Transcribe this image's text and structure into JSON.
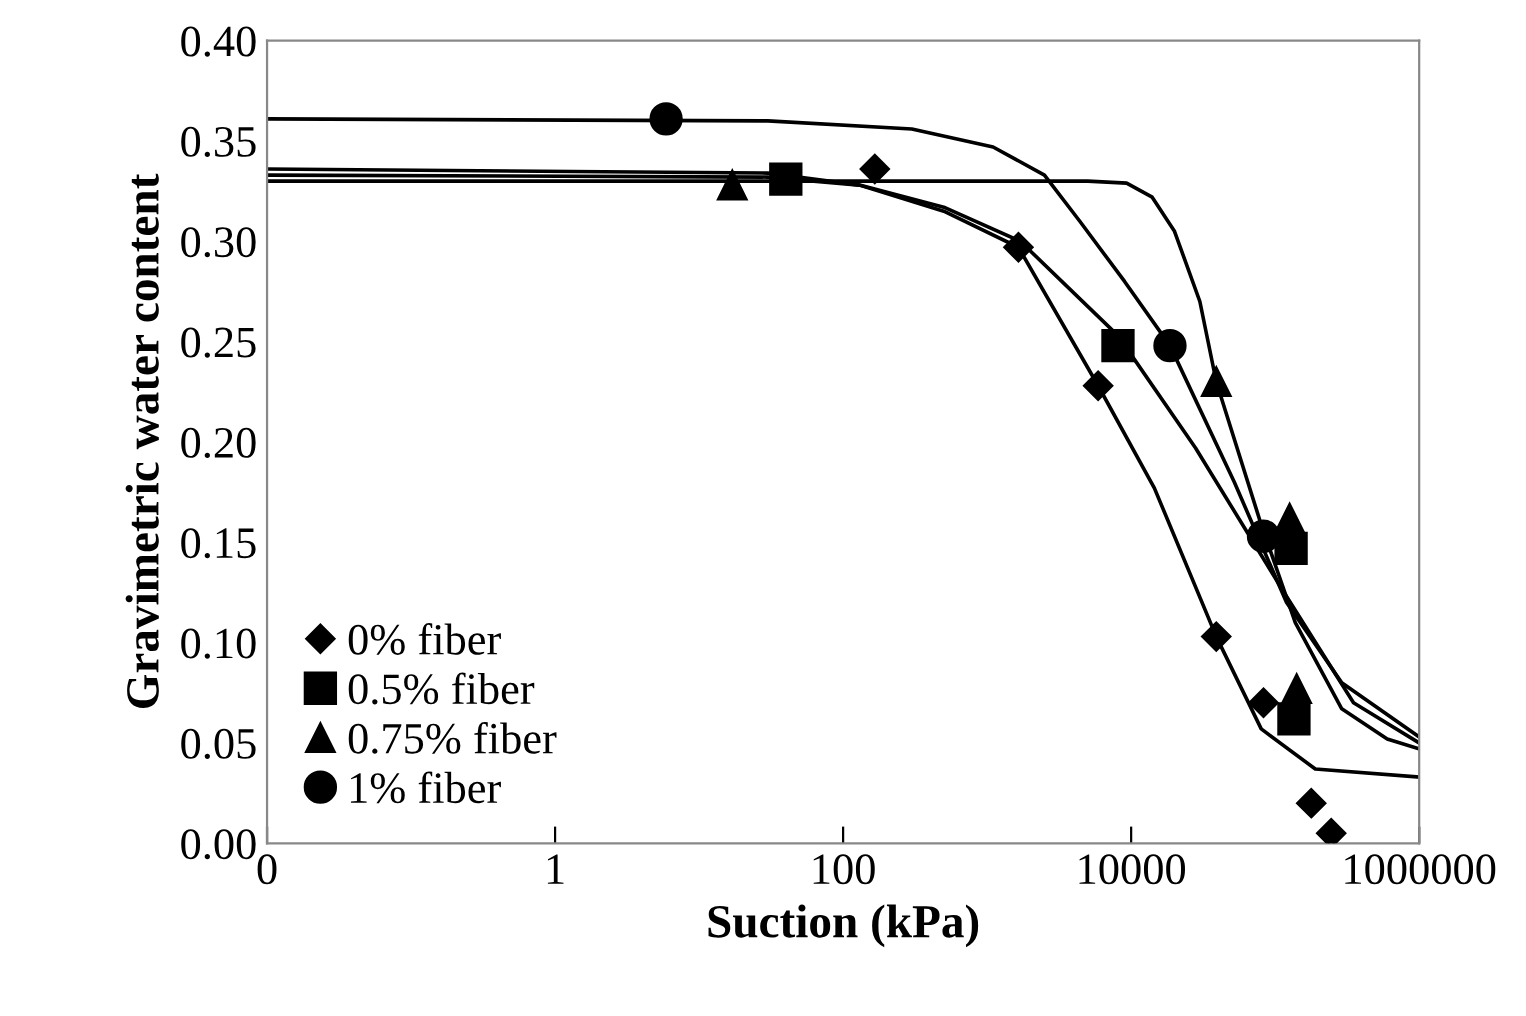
{
  "chart_data": {
    "type": "scatter",
    "xlabel": "Suction (kPa)",
    "ylabel": "Gravimetric water content",
    "log": "x",
    "xlim": [
      0.01,
      1000000
    ],
    "ylim": [
      0,
      0.4
    ],
    "xticks": [
      {
        "value": 0.01,
        "label": "0"
      },
      1,
      100,
      10000,
      1000000
    ],
    "yticks": [
      {
        "value": 0,
        "label": "0.00"
      },
      {
        "value": 0.05,
        "label": "0.05"
      },
      {
        "value": 0.1,
        "label": "0.10"
      },
      {
        "value": 0.15,
        "label": "0.15"
      },
      {
        "value": 0.2,
        "label": "0.20"
      },
      {
        "value": 0.25,
        "label": "0.25"
      },
      {
        "value": 0.3,
        "label": "0.30"
      },
      {
        "value": 0.35,
        "label": "0.35"
      },
      {
        "value": 0.4,
        "label": "0.40"
      }
    ],
    "grid": false,
    "legend": "bottom left",
    "series": [
      {
        "name": "0% fiber",
        "marker": "diamond",
        "color": "#000000",
        "x": [
          166,
          1650,
          5900,
          39000,
          83000,
          178000,
          245000
        ],
        "values": [
          0.336,
          0.297,
          0.228,
          0.103,
          0.07,
          0.02,
          0.005
        ]
      },
      {
        "name": "0.5% fiber",
        "marker": "square",
        "color": "#000000",
        "x": [
          40,
          8100,
          129000,
          135000
        ],
        "values": [
          0.331,
          0.248,
          0.147,
          0.062
        ]
      },
      {
        "name": "0.75% fiber",
        "marker": "triangle",
        "color": "#000000",
        "x": [
          17,
          39000,
          126000,
          141000
        ],
        "values": [
          0.328,
          0.23,
          0.162,
          0.077
        ]
      },
      {
        "name": "1% fiber",
        "marker": "circle",
        "color": "#000000",
        "x": [
          5.9,
          18600,
          83000
        ],
        "values": [
          0.361,
          0.248,
          0.153
        ]
      },
      {
        "type": "line",
        "marker": "none",
        "color": "#000000",
        "x": [
          0.01,
          30,
          300,
          1100,
          2500,
          4400,
          9000,
          18600,
          52000,
          120000,
          290000,
          1000000
        ],
        "values": [
          0.361,
          0.36,
          0.356,
          0.347,
          0.333,
          0.31,
          0.28,
          0.248,
          0.18,
          0.12,
          0.08,
          0.053
        ]
      },
      {
        "type": "line",
        "marker": "none",
        "color": "#000000",
        "x": [
          0.01,
          5000,
          9300,
          14000,
          20000,
          30000,
          39000,
          79000,
          138000,
          290000,
          600000,
          1000000
        ],
        "values": [
          0.33,
          0.33,
          0.329,
          0.322,
          0.305,
          0.27,
          0.23,
          0.16,
          0.11,
          0.067,
          0.052,
          0.047
        ]
      },
      {
        "type": "line",
        "marker": "none",
        "color": "#000000",
        "x": [
          0.01,
          30,
          130,
          500,
          1700,
          8100,
          28000,
          120000,
          350000,
          1000000
        ],
        "values": [
          0.333,
          0.332,
          0.328,
          0.317,
          0.3,
          0.253,
          0.197,
          0.123,
          0.07,
          0.05
        ]
      },
      {
        "type": "line",
        "marker": "none",
        "color": "#000000",
        "x": [
          0.01,
          30,
          130,
          500,
          1650,
          5900,
          14500,
          39000,
          80000,
          190000,
          1000000
        ],
        "values": [
          0.336,
          0.334,
          0.328,
          0.315,
          0.297,
          0.228,
          0.177,
          0.103,
          0.057,
          0.037,
          0.033
        ]
      }
    ]
  }
}
